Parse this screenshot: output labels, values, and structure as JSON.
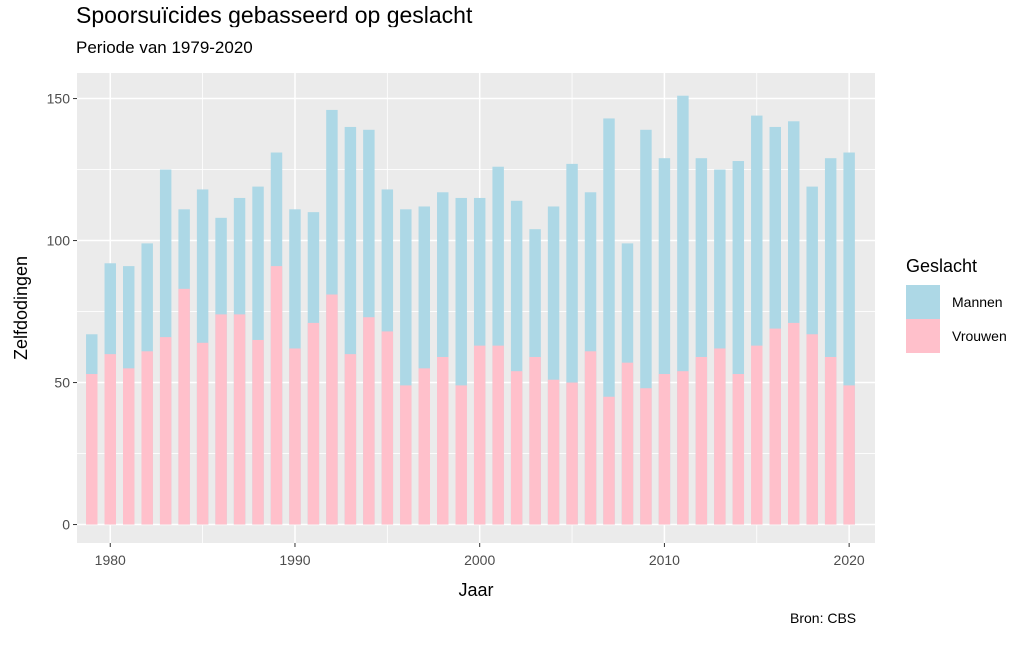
{
  "chart_data": {
    "type": "bar",
    "title": "Spoorsuïcides gebasseerd op geslacht",
    "subtitle": "Periode van 1979-2020",
    "xlabel": "Jaar",
    "ylabel": "Zelfdodingen",
    "caption": "Bron: CBS",
    "x": [
      1979,
      1980,
      1981,
      1982,
      1983,
      1984,
      1985,
      1986,
      1987,
      1988,
      1989,
      1990,
      1991,
      1992,
      1993,
      1994,
      1995,
      1996,
      1997,
      1998,
      1999,
      2000,
      2001,
      2002,
      2003,
      2004,
      2005,
      2006,
      2007,
      2008,
      2009,
      2010,
      2011,
      2012,
      2013,
      2014,
      2015,
      2016,
      2017,
      2018,
      2019,
      2020
    ],
    "x_ticks": [
      "1980",
      "1990",
      "2000",
      "2010",
      "2020"
    ],
    "y_ticks": [
      "0",
      "50",
      "100",
      "150"
    ],
    "xlim": [
      1978.2,
      2021.4
    ],
    "ylim": [
      -6.5,
      159
    ],
    "grid": true,
    "legend_title": "Geslacht",
    "legend_position": "right",
    "series": [
      {
        "name": "Mannen",
        "color": "#add8e6",
        "values": [
          67,
          92,
          91,
          99,
          125,
          111,
          118,
          108,
          115,
          119,
          131,
          111,
          110,
          146,
          140,
          139,
          118,
          111,
          112,
          117,
          115,
          115,
          126,
          114,
          104,
          112,
          127,
          117,
          143,
          99,
          139,
          129,
          151,
          129,
          125,
          128,
          144,
          140,
          142,
          119,
          129,
          131
        ]
      },
      {
        "name": "Vrouwen",
        "color": "#ffc0cb",
        "values": [
          53,
          60,
          55,
          61,
          66,
          83,
          64,
          74,
          74,
          65,
          91,
          62,
          71,
          81,
          60,
          73,
          68,
          49,
          55,
          59,
          49,
          63,
          63,
          54,
          59,
          51,
          50,
          61,
          45,
          57,
          48,
          53,
          54,
          59,
          62,
          53,
          63,
          69,
          71,
          67,
          59,
          49
        ]
      }
    ]
  }
}
